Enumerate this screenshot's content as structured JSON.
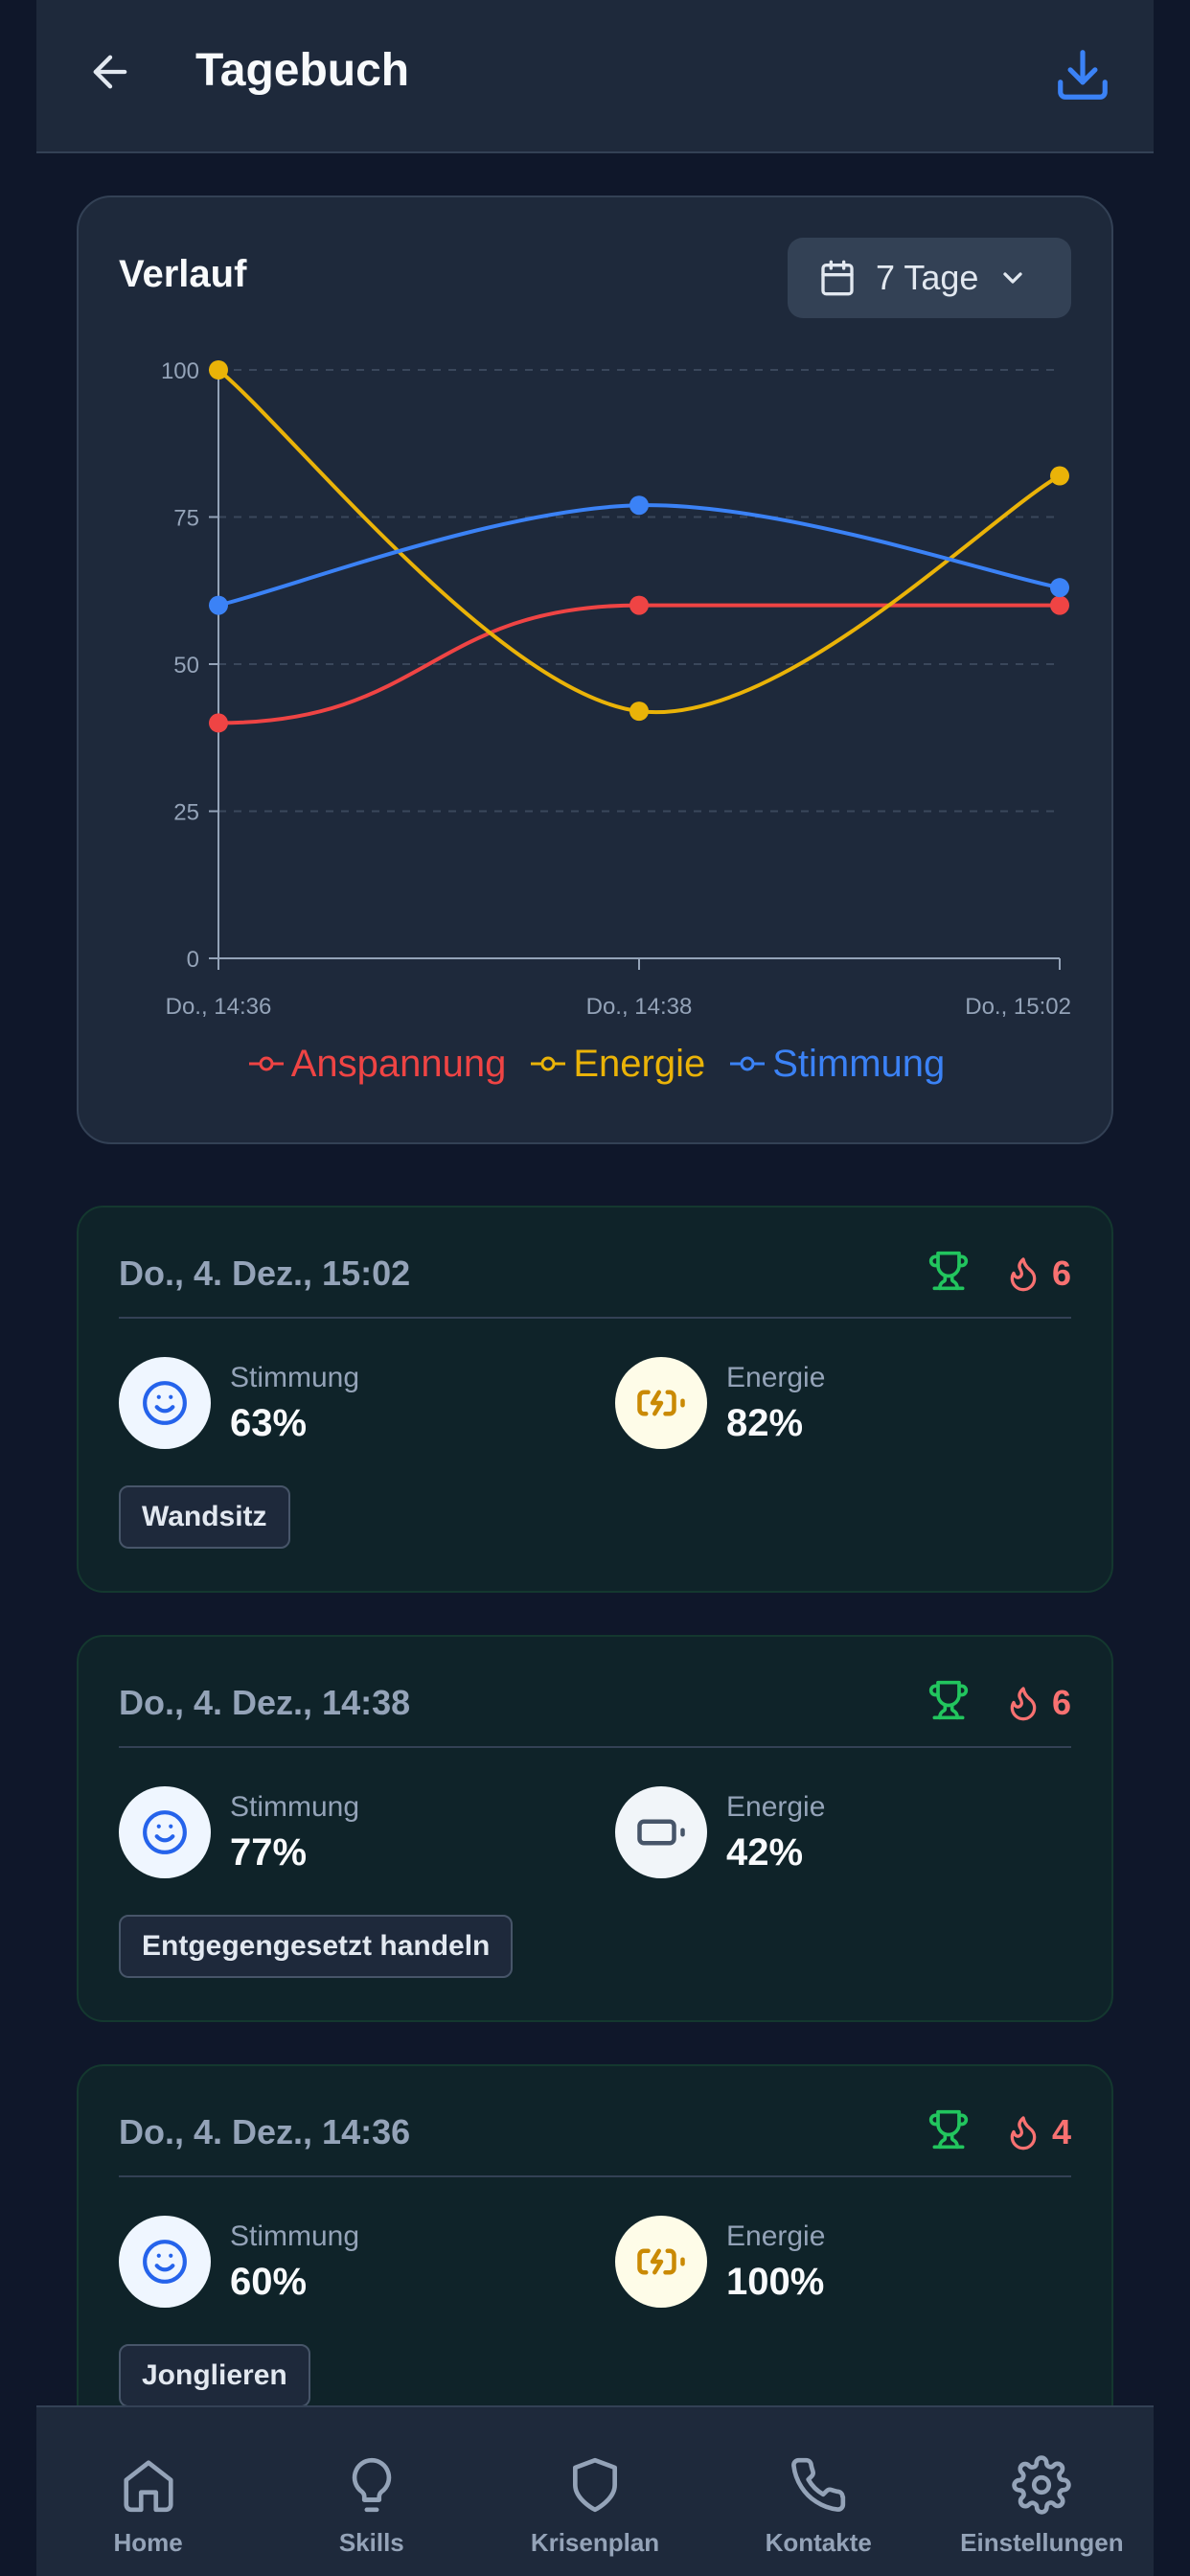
{
  "header": {
    "title": "Tagebuch",
    "back_icon": "arrow-left-icon",
    "download_icon": "download-icon"
  },
  "chart_card": {
    "title": "Verlauf",
    "range": {
      "label": "7 Tage",
      "icon": "calendar-icon",
      "chevron": "chevron-down-icon"
    }
  },
  "chart_data": {
    "type": "line",
    "categories": [
      "Do., 14:36",
      "Do., 14:38",
      "Do., 15:02"
    ],
    "ylim": [
      0,
      100
    ],
    "yticks": [
      0,
      25,
      50,
      75,
      100
    ],
    "grid": true,
    "legend_position": "bottom",
    "series": [
      {
        "name": "Anspannung",
        "color": "#ef4444",
        "values": [
          40,
          60,
          60
        ]
      },
      {
        "name": "Energie",
        "color": "#eab308",
        "values": [
          100,
          42,
          82
        ]
      },
      {
        "name": "Stimmung",
        "color": "#3b82f6",
        "values": [
          60,
          77,
          63
        ]
      }
    ]
  },
  "entries": [
    {
      "date": "Do., 4. Dez., 15:02",
      "streak": "6",
      "mood_label": "Stimmung",
      "mood_value": "63%",
      "energy_label": "Energie",
      "energy_value": "82%",
      "energy_icon": "battery-charging-icon",
      "skill": "Wandsitz"
    },
    {
      "date": "Do., 4. Dez., 14:38",
      "streak": "6",
      "mood_label": "Stimmung",
      "mood_value": "77%",
      "energy_label": "Energie",
      "energy_value": "42%",
      "energy_icon": "battery-icon",
      "skill": "Entgegengesetzt handeln"
    },
    {
      "date": "Do., 4. Dez., 14:36",
      "streak": "4",
      "mood_label": "Stimmung",
      "mood_value": "60%",
      "energy_label": "Energie",
      "energy_value": "100%",
      "energy_icon": "battery-charging-icon",
      "skill": "Jonglieren"
    }
  ],
  "colors": {
    "accent": "#3b82f6",
    "success": "#22c55e",
    "danger": "#f87171",
    "energy": "#ca8a04"
  },
  "nav": [
    {
      "label": "Home",
      "icon": "home-icon"
    },
    {
      "label": "Skills",
      "icon": "lightbulb-icon"
    },
    {
      "label": "Krisenplan",
      "icon": "shield-icon"
    },
    {
      "label": "Kontakte",
      "icon": "phone-icon"
    },
    {
      "label": "Einstellungen",
      "icon": "gear-icon"
    }
  ]
}
